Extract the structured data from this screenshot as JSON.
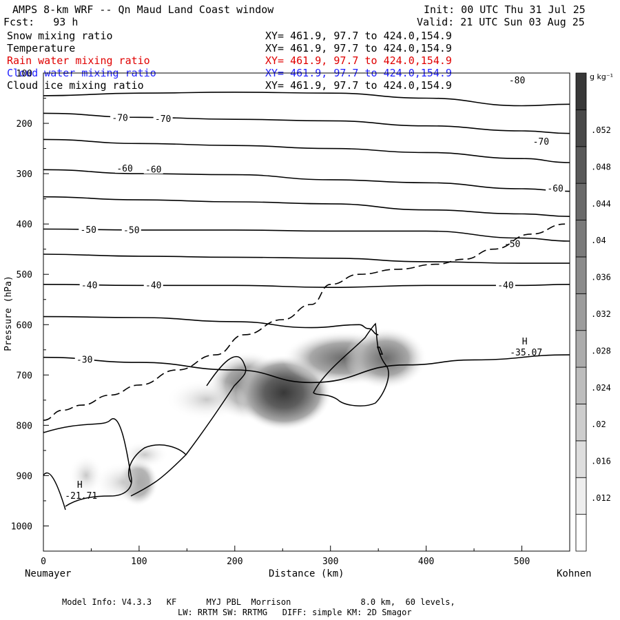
{
  "header": {
    "title": "AMPS 8-km WRF -- Qn Maud Land Coast window",
    "init": "Init: 00 UTC Thu 31 Jul 25",
    "fcst": "Fcst:   93 h",
    "valid": "Valid: 21 UTC Sun 03 Aug 25"
  },
  "fields": [
    {
      "name": "Snow mixing ratio",
      "xy": "XY= 461.9, 97.7 to 424.0,154.9",
      "color": "#000000"
    },
    {
      "name": "Temperature",
      "xy": "XY= 461.9, 97.7 to 424.0,154.9",
      "color": "#000000"
    },
    {
      "name": "Rain water mixing ratio",
      "xy": "XY= 461.9, 97.7 to 424.0,154.9",
      "color": "#e00000"
    },
    {
      "name": "Cloud water mixing ratio",
      "xy": "XY= 461.9, 97.7 to 424.0,154.9",
      "color": "#2020ff"
    },
    {
      "name": "Cloud ice mixing ratio",
      "xy": "XY= 461.9, 97.7 to 424.0,154.9",
      "color": "#000000"
    }
  ],
  "footer": {
    "line1": "Model Info: V4.3.3   KF      MYJ PBL  Morrison              8.0 km,  60 levels,",
    "line2": "LW: RRTM SW: RRTMG   DIFF: simple KM: 2D Smagor"
  },
  "chart_data": {
    "type": "contour",
    "xlabel": "Distance (km)",
    "ylabel": "Pressure (hPa)",
    "xlim": [
      0,
      550
    ],
    "ylim": [
      1050,
      100
    ],
    "x_ticks": [
      0,
      100,
      200,
      300,
      400,
      500
    ],
    "y_ticks": [
      100,
      200,
      300,
      400,
      500,
      600,
      700,
      800,
      900,
      1000
    ],
    "left_endpoint": "Neumayer",
    "right_endpoint": "Kohnen",
    "colorbar": {
      "units": "g kg⁻¹",
      "ticks": [
        ".012",
        ".016",
        ".02",
        ".024",
        ".028",
        ".032",
        ".036",
        ".04",
        ".044",
        ".048",
        ".052"
      ]
    },
    "temperature_labels": [
      {
        "text": "-80",
        "x": 495,
        "p": 115
      },
      {
        "text": "-70",
        "x": 80,
        "p": 190
      },
      {
        "text": "-70",
        "x": 125,
        "p": 192
      },
      {
        "text": "-70",
        "x": 520,
        "p": 237
      },
      {
        "text": "-60",
        "x": 85,
        "p": 290
      },
      {
        "text": "-60",
        "x": 115,
        "p": 292
      },
      {
        "text": "-60",
        "x": 535,
        "p": 330
      },
      {
        "text": "-50",
        "x": 47,
        "p": 412
      },
      {
        "text": "-50",
        "x": 92,
        "p": 413
      },
      {
        "text": "-50",
        "x": 490,
        "p": 440
      },
      {
        "text": "-40",
        "x": 48,
        "p": 522
      },
      {
        "text": "-40",
        "x": 115,
        "p": 522
      },
      {
        "text": "-40",
        "x": 483,
        "p": 522
      },
      {
        "text": "-30",
        "x": 43,
        "p": 670
      }
    ],
    "temperature_contours": [
      {
        "x": [
          0,
          100,
          200,
          300,
          400,
          500,
          550
        ],
        "p": [
          145,
          140,
          138,
          140,
          150,
          165,
          162
        ]
      },
      {
        "x": [
          0,
          100,
          200,
          300,
          400,
          500,
          550
        ],
        "p": [
          180,
          188,
          192,
          195,
          205,
          215,
          220
        ]
      },
      {
        "x": [
          0,
          100,
          200,
          300,
          400,
          500,
          550
        ],
        "p": [
          232,
          240,
          244,
          250,
          258,
          270,
          278
        ]
      },
      {
        "x": [
          0,
          100,
          200,
          300,
          400,
          500,
          550
        ],
        "p": [
          292,
          300,
          302,
          312,
          318,
          330,
          335
        ]
      },
      {
        "x": [
          0,
          100,
          200,
          300,
          400,
          500,
          550
        ],
        "p": [
          346,
          352,
          356,
          360,
          372,
          380,
          385
        ]
      },
      {
        "x": [
          0,
          100,
          200,
          300,
          400,
          500,
          550
        ],
        "p": [
          410,
          412,
          412,
          414,
          414,
          428,
          434
        ]
      },
      {
        "x": [
          0,
          100,
          200,
          300,
          400,
          500,
          550
        ],
        "p": [
          460,
          464,
          466,
          468,
          475,
          478,
          478
        ]
      },
      {
        "x": [
          0,
          100,
          200,
          300,
          400,
          500,
          550
        ],
        "p": [
          520,
          522,
          522,
          526,
          522,
          522,
          520
        ]
      },
      {
        "x": [
          0,
          100,
          200,
          280,
          330,
          340,
          350
        ],
        "p": [
          584,
          586,
          594,
          606,
          600,
          608,
          620
        ]
      },
      {
        "x": [
          0,
          100,
          200,
          280,
          380,
          450,
          550
        ],
        "p": [
          665,
          675,
          690,
          715,
          680,
          670,
          660
        ]
      }
    ],
    "extrema": [
      {
        "label": "H",
        "value": "-21.71",
        "x": 38,
        "p": 935
      },
      {
        "label": "H",
        "value": "-35.07",
        "x": 503,
        "p": 650
      }
    ],
    "freezing_line_dashed": {
      "x": [
        0,
        20,
        40,
        70,
        100,
        140,
        180,
        210,
        250,
        280,
        300,
        330,
        370,
        410,
        440,
        470,
        510,
        545
      ],
      "p": [
        790,
        770,
        760,
        740,
        720,
        690,
        660,
        620,
        590,
        560,
        520,
        500,
        490,
        480,
        470,
        450,
        420,
        400
      ]
    },
    "snow_max": {
      "x": 250,
      "p": 740,
      "value": 0.04
    }
  }
}
